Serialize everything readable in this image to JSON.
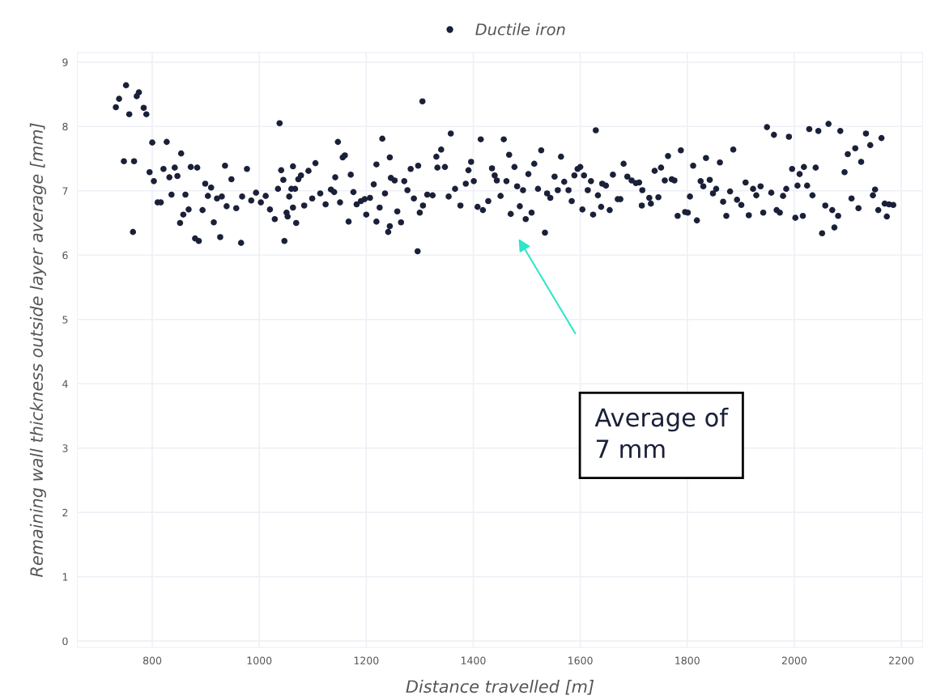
{
  "chart_data": {
    "type": "scatter",
    "xlabel": "Distance travelled [m]",
    "ylabel": "Remaining wall thickness outside layer average [mm]",
    "xlim": [
      660,
      2240
    ],
    "xticks": [
      800,
      1000,
      1200,
      1400,
      1600,
      1800,
      2000,
      2200
    ],
    "ylim": [
      -0.1,
      9.15
    ],
    "yticks": [
      0,
      1,
      2,
      3,
      4,
      5,
      6,
      7,
      8,
      9
    ],
    "grid": true,
    "legend": "top",
    "annotations": [
      "Average of\n7 mm"
    ],
    "series": [
      {
        "name": "Ductile iron",
        "color": "#1a2038",
        "x": [
          751,
          738,
          732,
          757,
          775,
          771,
          784,
          789,
          747,
          766,
          764,
          800,
          827,
          795,
          803,
          810,
          816,
          821,
          832,
          842,
          847,
          854,
          836,
          862,
          852,
          858,
          868,
          872,
          884,
          880,
          887,
          899,
          910,
          904,
          894,
          915,
          921,
          930,
          927,
          936,
          948,
          939,
          957,
          966,
          968,
          977,
          985,
          994,
          1003,
          1012,
          1020,
          1029,
          1038,
          1041,
          1045,
          1035,
          1047,
          1051,
          1053,
          1056,
          1060,
          1067,
          1063,
          1063,
          1069,
          1073,
          1078,
          1084,
          1092,
          1105,
          1099,
          1114,
          1124,
          1134,
          1140,
          1142,
          1147,
          1156,
          1160,
          1151,
          1171,
          1176,
          1167,
          1182,
          1190,
          1197,
          1207,
          1214,
          1200,
          1219,
          1219,
          1225,
          1230,
          1235,
          1244,
          1246,
          1253,
          1241,
          1244,
          1258,
          1265,
          1271,
          1277,
          1283,
          1289,
          1297,
          1300,
          1306,
          1305,
          1296,
          1314,
          1324,
          1331,
          1340,
          1333,
          1347,
          1358,
          1354,
          1366,
          1376,
          1386,
          1391,
          1396,
          1401,
          1408,
          1418,
          1414,
          1428,
          1435,
          1440,
          1444,
          1451,
          1457,
          1462,
          1467,
          1470,
          1477,
          1482,
          1487,
          1493,
          1498,
          1503,
          1509,
          1514,
          1521,
          1527,
          1534,
          1538,
          1544,
          1552,
          1558,
          1564,
          1570,
          1578,
          1584,
          1589,
          1595,
          1600,
          1604,
          1607,
          1614,
          1620,
          1624,
          1629,
          1633,
          1639,
          1641,
          1648,
          1655,
          1661,
          1670,
          1675,
          1681,
          1688,
          1696,
          1704,
          1710,
          1716,
          1715,
          1729,
          1732,
          1739,
          1746,
          1751,
          1758,
          1764,
          1771,
          1776,
          1788,
          1782,
          1796,
          1801,
          1805,
          1811,
          1818,
          1825,
          1830,
          1835,
          1842,
          1848,
          1854,
          1861,
          1867,
          1873,
          1880,
          1886,
          1893,
          1901,
          1909,
          1915,
          1923,
          1929,
          1937,
          1942,
          1949,
          1957,
          1962,
          1967,
          1973,
          1979,
          1985,
          1990,
          1996,
          2002,
          2006,
          2010,
          2016,
          2018,
          2024,
          2028,
          2034,
          2040,
          2045,
          2052,
          2058,
          2064,
          2071,
          2075,
          2082,
          2086,
          2094,
          2100,
          2107,
          2114,
          2120,
          2125,
          2134,
          2142,
          2147,
          2151,
          2157,
          2163,
          2169,
          2173,
          2177,
          2185
        ],
        "values": [
          8.64,
          8.43,
          8.3,
          8.19,
          8.53,
          8.47,
          8.29,
          8.19,
          7.46,
          7.46,
          6.36,
          7.75,
          7.76,
          7.29,
          7.15,
          6.82,
          6.82,
          7.34,
          7.21,
          7.36,
          7.23,
          7.58,
          6.94,
          6.94,
          6.5,
          6.63,
          6.71,
          7.37,
          7.36,
          6.26,
          6.22,
          7.11,
          7.05,
          6.92,
          6.7,
          6.51,
          6.88,
          6.91,
          6.28,
          7.39,
          7.18,
          6.76,
          6.73,
          6.19,
          6.91,
          7.34,
          6.85,
          6.97,
          6.82,
          6.92,
          6.71,
          6.56,
          8.05,
          7.32,
          7.17,
          7.03,
          6.22,
          6.66,
          6.6,
          6.91,
          7.03,
          7.03,
          7.38,
          6.74,
          6.5,
          7.18,
          7.24,
          6.77,
          7.31,
          7.43,
          6.88,
          6.96,
          6.79,
          7.02,
          6.98,
          7.21,
          7.76,
          7.52,
          7.55,
          6.82,
          7.25,
          6.98,
          6.52,
          6.79,
          6.84,
          6.87,
          6.89,
          7.1,
          6.63,
          7.41,
          6.52,
          6.74,
          7.81,
          6.96,
          7.52,
          7.2,
          7.16,
          6.36,
          6.45,
          6.68,
          6.51,
          7.15,
          7.01,
          7.34,
          6.88,
          7.39,
          6.66,
          6.77,
          8.39,
          6.06,
          6.94,
          6.93,
          7.53,
          7.64,
          7.36,
          7.37,
          7.89,
          6.91,
          7.03,
          6.77,
          7.11,
          7.32,
          7.45,
          7.15,
          6.75,
          6.7,
          7.8,
          6.84,
          7.35,
          7.24,
          7.16,
          6.92,
          7.8,
          7.15,
          7.56,
          6.64,
          7.37,
          7.07,
          6.76,
          7.01,
          6.56,
          7.26,
          6.66,
          7.42,
          7.03,
          7.63,
          6.35,
          6.96,
          6.89,
          7.22,
          7.01,
          7.53,
          7.14,
          7.01,
          6.84,
          7.24,
          7.34,
          7.37,
          6.71,
          7.24,
          7.01,
          7.15,
          6.63,
          7.94,
          6.93,
          6.75,
          7.11,
          7.08,
          6.7,
          7.25,
          6.87,
          6.87,
          7.42,
          7.22,
          7.16,
          7.12,
          7.13,
          7.01,
          6.77,
          6.89,
          6.8,
          7.31,
          6.9,
          7.36,
          7.16,
          7.54,
          7.18,
          7.16,
          7.63,
          6.61,
          6.67,
          6.66,
          6.91,
          7.39,
          6.54,
          7.15,
          7.07,
          7.51,
          7.17,
          6.96,
          7.03,
          7.44,
          6.83,
          6.61,
          6.99,
          7.64,
          6.86,
          6.78,
          7.13,
          6.62,
          7.03,
          6.93,
          7.07,
          6.66,
          7.99,
          6.97,
          7.87,
          6.7,
          6.66,
          6.92,
          7.03,
          7.84,
          7.34,
          6.58,
          7.08,
          7.26,
          6.61,
          7.37,
          7.08,
          7.96,
          6.93,
          7.36,
          7.93,
          6.34,
          6.77,
          8.04,
          6.7,
          6.43,
          6.61,
          7.93,
          7.29,
          7.57,
          6.88,
          7.66,
          6.73,
          7.45,
          7.89,
          7.71,
          6.93,
          7.02,
          6.7,
          7.82,
          6.8,
          6.6,
          6.79,
          6.78
        ]
      }
    ]
  }
}
